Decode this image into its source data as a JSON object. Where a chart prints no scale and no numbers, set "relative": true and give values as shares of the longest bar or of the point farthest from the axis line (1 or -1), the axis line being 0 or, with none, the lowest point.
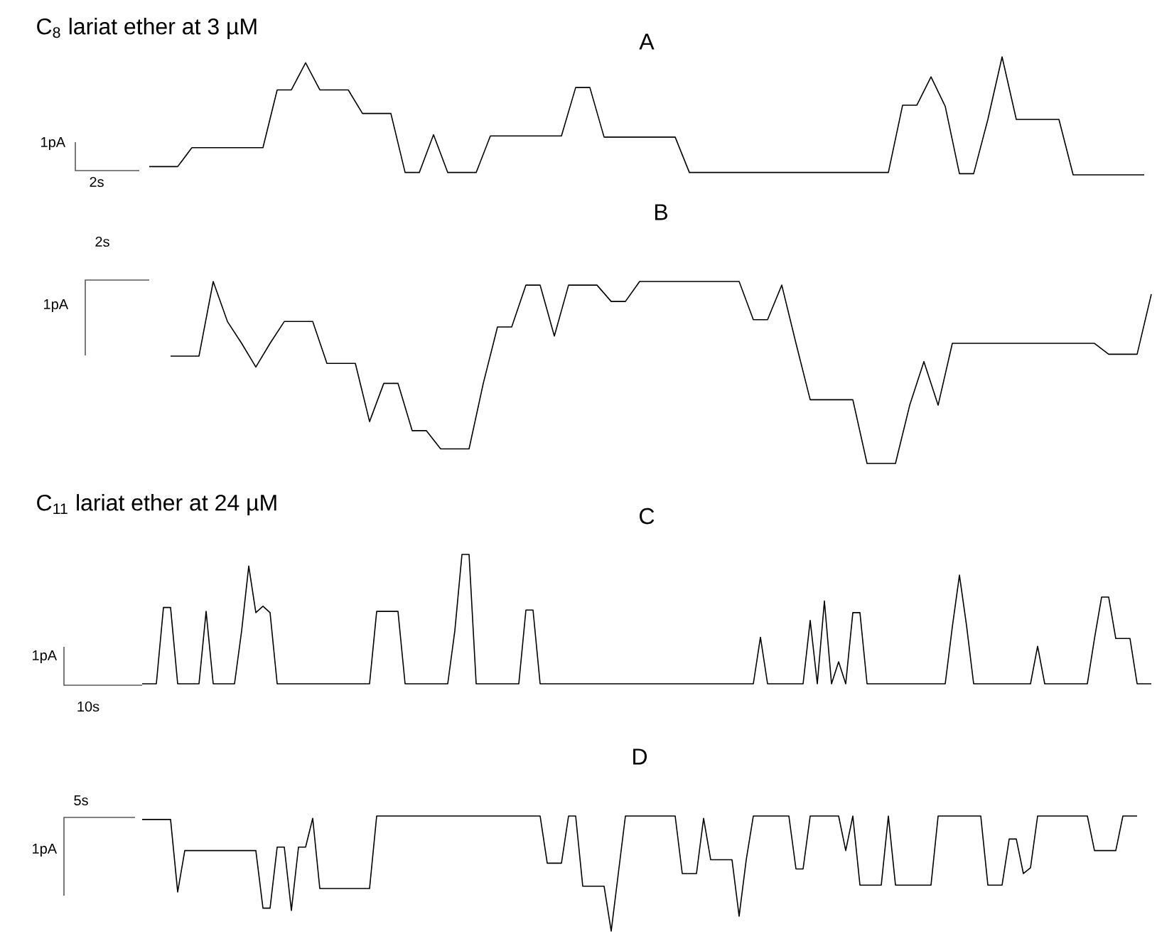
{
  "chart_data": [
    {
      "type": "line",
      "relative": true,
      "title": "A",
      "color": "#000000",
      "annotations": [
        "C$_{8}$ lariat ether at 3 µM",
        "1pA",
        "2s"
      ],
      "categories": [
        null,
        null,
        null,
        null,
        null,
        null,
        null,
        null,
        null,
        null,
        null,
        null,
        null,
        null,
        null,
        null,
        null,
        null,
        null,
        null,
        null,
        null,
        null,
        null,
        null,
        null,
        null,
        null,
        null,
        null,
        null,
        null,
        null,
        null,
        null,
        null,
        null,
        null,
        null,
        null,
        null,
        null,
        null,
        null,
        null,
        null,
        null,
        null,
        null,
        null,
        null,
        null,
        null,
        null,
        null,
        null,
        null,
        null,
        null,
        null,
        null,
        null,
        null,
        null,
        null,
        null,
        null,
        null,
        null,
        null,
        null
      ],
      "values": [
        0.07,
        0.07,
        0.07,
        0.23,
        0.23,
        0.23,
        0.23,
        0.23,
        0.23,
        0.72,
        0.72,
        0.95,
        0.72,
        0.72,
        0.72,
        0.52,
        0.52,
        0.52,
        0.02,
        0.02,
        0.34,
        0.02,
        0.02,
        0.02,
        0.33,
        0.33,
        0.33,
        0.33,
        0.33,
        0.33,
        0.74,
        0.74,
        0.32,
        0.32,
        0.32,
        0.32,
        0.32,
        0.32,
        0.02,
        0.02,
        0.02,
        0.02,
        0.02,
        0.02,
        0.02,
        0.02,
        0.02,
        0.02,
        0.02,
        0.02,
        0.02,
        0.02,
        0.02,
        0.59,
        0.59,
        0.83,
        0.58,
        0.01,
        0.01,
        0.47,
        1.0,
        0.47,
        0.47,
        0.47,
        0.47,
        0,
        0,
        0,
        0,
        0,
        0
      ]
    },
    {
      "type": "line",
      "relative": true,
      "title": "B",
      "color": "#000000",
      "annotations": [
        "2s",
        "1pA"
      ],
      "categories": [
        null,
        null,
        null,
        null,
        null,
        null,
        null,
        null,
        null,
        null,
        null,
        null,
        null,
        null,
        null,
        null,
        null,
        null,
        null,
        null,
        null,
        null,
        null,
        null,
        null,
        null,
        null,
        null,
        null,
        null,
        null,
        null,
        null,
        null,
        null,
        null,
        null,
        null,
        null,
        null,
        null,
        null,
        null,
        null,
        null,
        null,
        null,
        null,
        null,
        null,
        null,
        null,
        null,
        null,
        null,
        null,
        null,
        null,
        null,
        null,
        null,
        null,
        null,
        null,
        null,
        null,
        null,
        null,
        null,
        null
      ],
      "values": [
        0.59,
        0.59,
        0.59,
        1,
        0.78,
        0.66,
        0.53,
        0.66,
        0.78,
        0.78,
        0.78,
        0.55,
        0.55,
        0.55,
        0.23,
        0.44,
        0.44,
        0.18,
        0.18,
        0.08,
        0.08,
        0.08,
        0.44,
        0.75,
        0.75,
        0.98,
        0.98,
        0.7,
        0.98,
        0.98,
        0.98,
        0.89,
        0.89,
        1,
        1,
        1,
        1,
        1,
        1,
        1,
        1,
        0.79,
        0.79,
        0.98,
        0.66,
        0.35,
        0.35,
        0.35,
        0.35,
        0,
        0,
        0,
        0.32,
        0.56,
        0.32,
        0.66,
        0.66,
        0.66,
        0.66,
        0.66,
        0.66,
        0.66,
        0.66,
        0.66,
        0.66,
        0.66,
        0.6,
        0.6,
        0.6,
        0.93
      ]
    },
    {
      "type": "line",
      "relative": true,
      "title": "C",
      "color": "#000000",
      "annotations": [
        "C$_{11}$ lariat ether at 24 µM",
        "1pA",
        "10s"
      ],
      "categories": [
        null,
        null,
        null,
        null,
        null,
        null,
        null,
        null,
        null,
        null,
        null,
        null,
        null,
        null,
        null,
        null,
        null,
        null,
        null,
        null,
        null,
        null,
        null,
        null,
        null,
        null,
        null,
        null,
        null,
        null,
        null,
        null,
        null,
        null,
        null,
        null,
        null,
        null,
        null,
        null,
        null,
        null,
        null,
        null,
        null,
        null,
        null,
        null,
        null,
        null,
        null,
        null,
        null,
        null,
        null,
        null,
        null,
        null,
        null,
        null,
        null,
        null,
        null,
        null,
        null,
        null,
        null,
        null,
        null,
        null,
        null,
        null,
        null,
        null,
        null,
        null,
        null,
        null,
        null,
        null,
        null,
        null,
        null,
        null,
        null,
        null,
        null,
        null,
        null,
        null,
        null,
        null,
        null,
        null,
        null,
        null,
        null,
        null,
        null,
        null,
        null,
        null,
        null,
        null,
        null,
        null,
        null,
        null,
        null,
        null,
        null,
        null,
        null,
        null,
        null,
        null,
        null,
        null,
        null,
        null,
        null,
        null,
        null,
        null,
        null,
        null,
        null,
        null,
        null,
        null,
        null,
        null,
        null,
        null,
        null,
        null,
        null,
        null,
        null,
        null,
        null,
        null,
        null
      ],
      "values": [
        0,
        0,
        0,
        0.59,
        0.59,
        0,
        0,
        0,
        0,
        0.56,
        0,
        0,
        0,
        0,
        0.41,
        0.91,
        0.55,
        0.6,
        0.55,
        0,
        0,
        0,
        0,
        0,
        0,
        0,
        0,
        0,
        0,
        0,
        0,
        0,
        0,
        0.56,
        0.56,
        0.56,
        0.56,
        0,
        0,
        0,
        0,
        0,
        0,
        0,
        0.41,
        1,
        1,
        0,
        0,
        0,
        0,
        0,
        0,
        0,
        0.57,
        0.57,
        0,
        0,
        0,
        0,
        0,
        0,
        0,
        0,
        0,
        0,
        0,
        0,
        0,
        0,
        0,
        0,
        0,
        0,
        0,
        0,
        0,
        0,
        0,
        0,
        0,
        0,
        0,
        0,
        0,
        0,
        0,
        0.36,
        0,
        0,
        0,
        0,
        0,
        0,
        0.49,
        0,
        0.64,
        0,
        0.17,
        0,
        0.55,
        0.55,
        0,
        0,
        0,
        0,
        0,
        0,
        0,
        0,
        0,
        0,
        0,
        0,
        0.44,
        0.84,
        0.45,
        0,
        0,
        0,
        0,
        0,
        0,
        0,
        0,
        0,
        0.29,
        0,
        0,
        0,
        0,
        0,
        0,
        0,
        0.35,
        0.67,
        0.67,
        0.35,
        0.35,
        0.35,
        0,
        0,
        0
      ]
    },
    {
      "type": "line",
      "relative": true,
      "title": "D",
      "color": "#000000",
      "annotations": [
        "5s",
        "1pA"
      ],
      "categories": [
        null,
        null,
        null,
        null,
        null,
        null,
        null,
        null,
        null,
        null,
        null,
        null,
        null,
        null,
        null,
        null,
        null,
        null,
        null,
        null,
        null,
        null,
        null,
        null,
        null,
        null,
        null,
        null,
        null,
        null,
        null,
        null,
        null,
        null,
        null,
        null,
        null,
        null,
        null,
        null,
        null,
        null,
        null,
        null,
        null,
        null,
        null,
        null,
        null,
        null,
        null,
        null,
        null,
        null,
        null,
        null,
        null,
        null,
        null,
        null,
        null,
        null,
        null,
        null,
        null,
        null,
        null,
        null,
        null,
        null,
        null,
        null,
        null,
        null,
        null,
        null,
        null,
        null,
        null,
        null,
        null,
        null,
        null,
        null,
        null,
        null,
        null,
        null,
        null,
        null,
        null,
        null,
        null,
        null,
        null,
        null,
        null,
        null,
        null,
        null,
        null,
        null,
        null,
        null,
        null,
        null,
        null,
        null,
        null,
        null,
        null,
        null,
        null,
        null,
        null,
        null,
        null,
        null,
        null,
        null,
        null,
        null,
        null,
        null,
        null,
        null,
        null,
        null,
        null,
        null,
        null,
        null,
        null,
        null,
        null,
        null,
        null,
        null,
        null,
        null,
        null
      ],
      "values": [
        0.97,
        0.97,
        0.97,
        0.97,
        0.97,
        0.34,
        0.7,
        0.7,
        0.7,
        0.7,
        0.7,
        0.7,
        0.7,
        0.7,
        0.7,
        0.7,
        0.7,
        0.2,
        0.2,
        0.73,
        0.73,
        0.18,
        0.73,
        0.73,
        0.98,
        0.37,
        0.37,
        0.37,
        0.37,
        0.37,
        0.37,
        0.37,
        0.37,
        1,
        1,
        1,
        1,
        1,
        1,
        1,
        1,
        1,
        1,
        1,
        1,
        1,
        1,
        1,
        1,
        1,
        1,
        1,
        1,
        1,
        1,
        1,
        1,
        0.59,
        0.59,
        0.59,
        1,
        1,
        0.39,
        0.39,
        0.39,
        0.39,
        0,
        0.5,
        1,
        1,
        1,
        1,
        1,
        1,
        1,
        1,
        0.5,
        0.5,
        0.5,
        0.98,
        0.62,
        0.62,
        0.62,
        0.62,
        0.13,
        0.62,
        1,
        1,
        1,
        1,
        1,
        1,
        0.54,
        0.54,
        1,
        1,
        1,
        1,
        1,
        0.7,
        1,
        0.4,
        0.4,
        0.4,
        0.4,
        1,
        0.4,
        0.4,
        0.4,
        0.4,
        0.4,
        0.4,
        1,
        1,
        1,
        1,
        1,
        1,
        1,
        0.4,
        0.4,
        0.4,
        0.8,
        0.8,
        0.5,
        0.55,
        1,
        1,
        1,
        1,
        1,
        1,
        1,
        1,
        0.7,
        0.7,
        0.7,
        0.7,
        1,
        1,
        1
      ]
    }
  ]
}
